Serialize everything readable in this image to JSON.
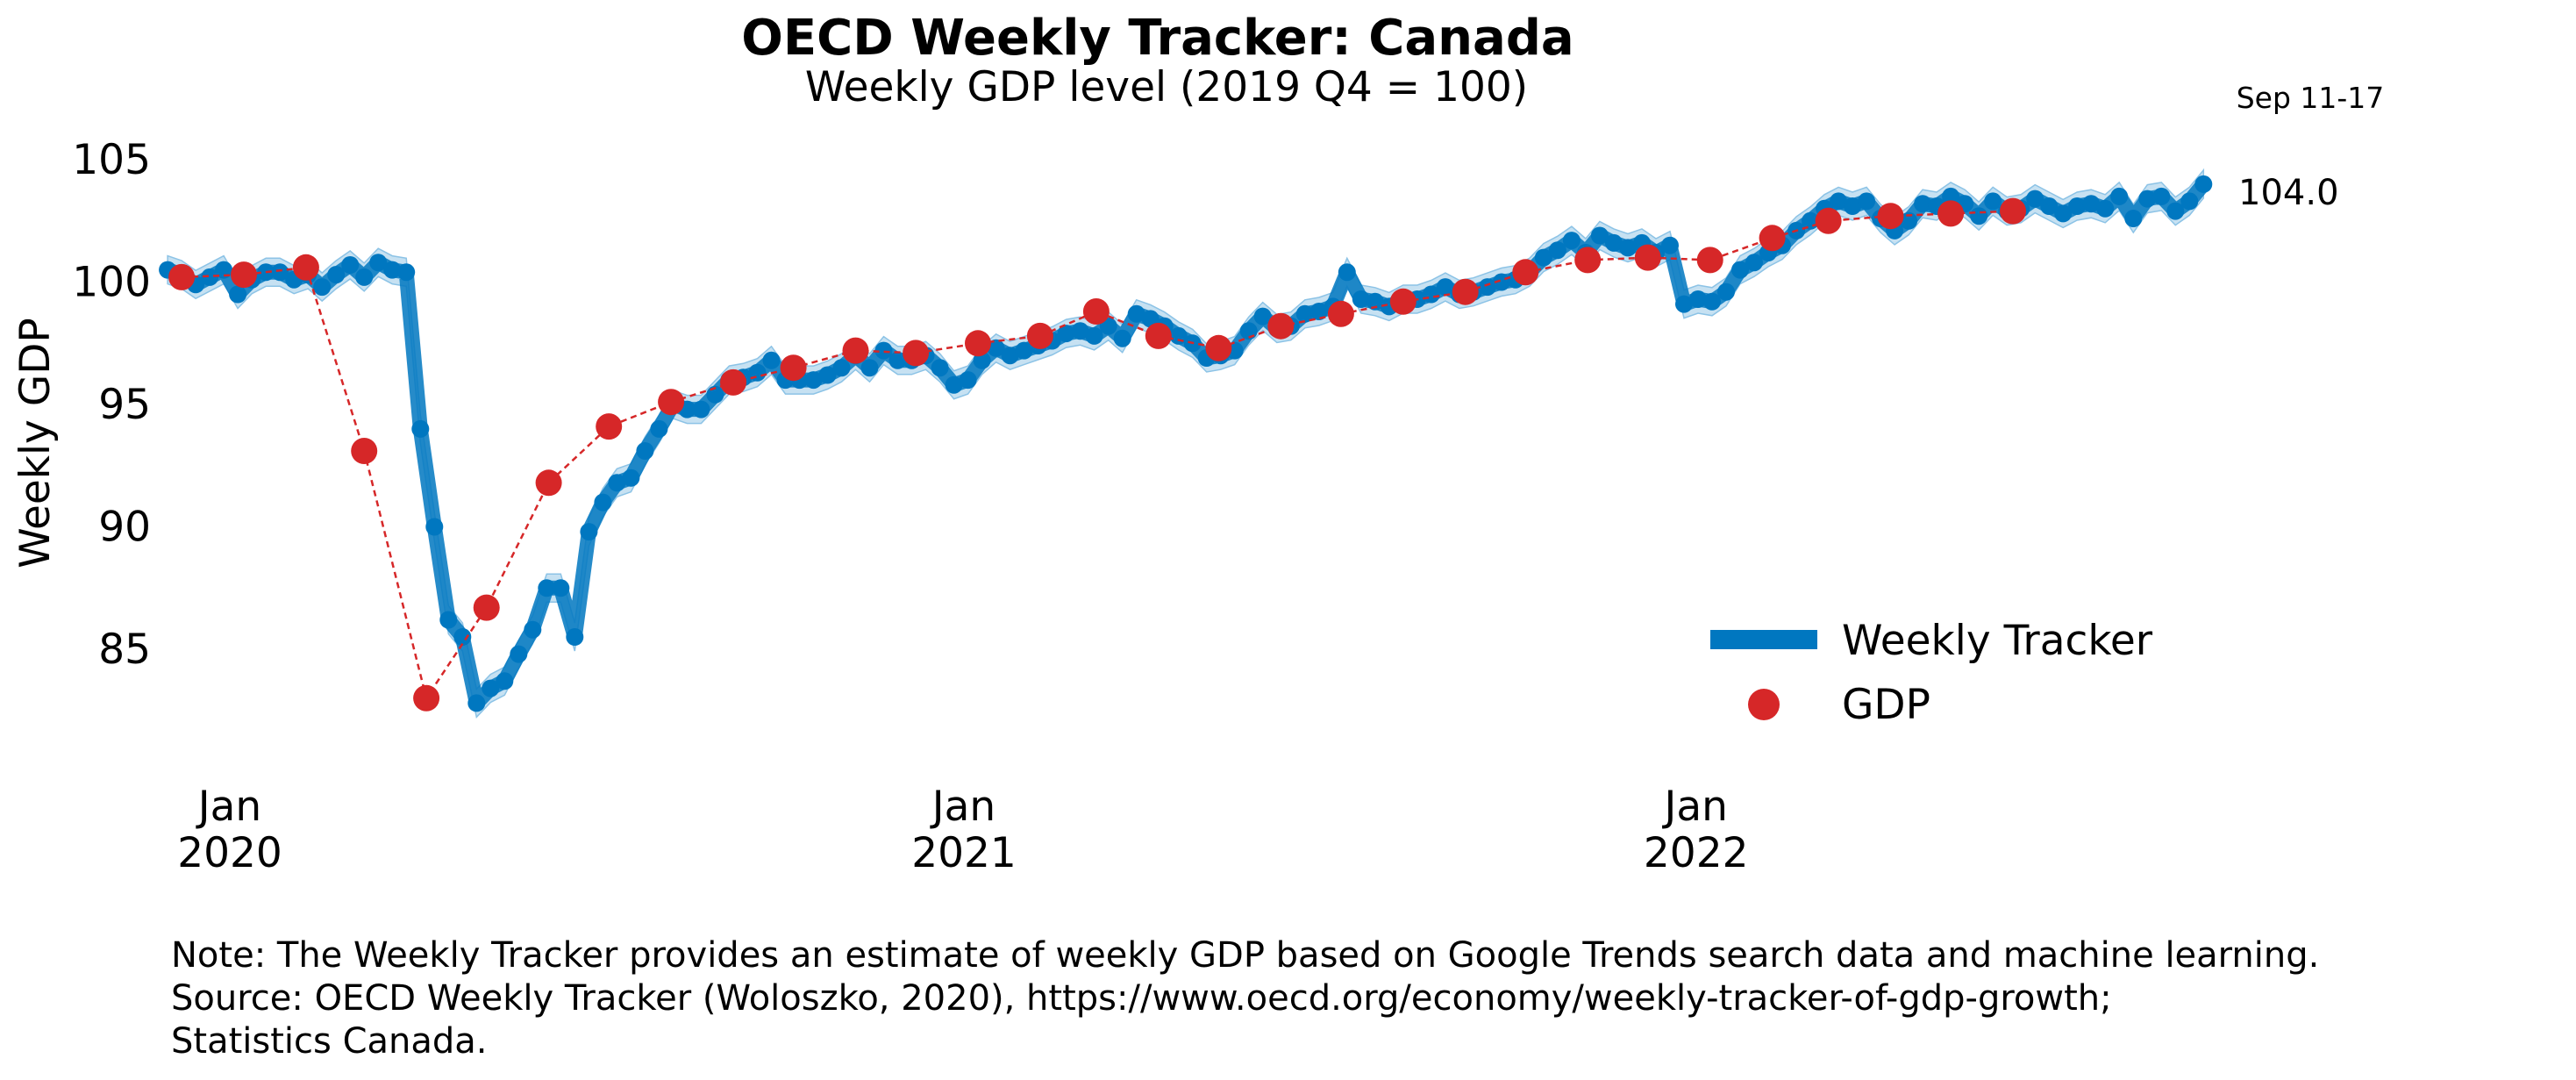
{
  "chart_data": {
    "type": "line",
    "title": "OECD Weekly Tracker: Canada",
    "subtitle": "Weekly GDP level (2019 Q4 = 100)",
    "ylabel": "Weekly GDP",
    "xlabel": "",
    "ylim": [
      80,
      106.5
    ],
    "yticks": [
      85,
      90,
      95,
      100,
      105
    ],
    "xticks": [
      {
        "date": "2020-01-01",
        "line1": "Jan",
        "line2": "2020"
      },
      {
        "date": "2021-01-01",
        "line1": "Jan",
        "line2": "2021"
      },
      {
        "date": "2022-01-01",
        "line1": "Jan",
        "line2": "2022"
      }
    ],
    "grid": false,
    "legend_position": "lower-right",
    "latest_period": "Sep 11-17",
    "latest_value": "104.0",
    "colors": {
      "tracker": "#0077c0",
      "band": "#b3d7ee",
      "gdp": "#d62728"
    },
    "series": [
      {
        "name": "Weekly Tracker",
        "type": "line",
        "points": [
          [
            "2019-12-01",
            100.5
          ],
          [
            "2019-12-08",
            100.3
          ],
          [
            "2019-12-15",
            99.9
          ],
          [
            "2019-12-22",
            100.2
          ],
          [
            "2019-12-29",
            100.5
          ],
          [
            "2020-01-05",
            99.5
          ],
          [
            "2020-01-12",
            100.1
          ],
          [
            "2020-01-19",
            100.4
          ],
          [
            "2020-01-26",
            100.4
          ],
          [
            "2020-02-02",
            100.1
          ],
          [
            "2020-02-09",
            100.3
          ],
          [
            "2020-02-16",
            99.8
          ],
          [
            "2020-02-23",
            100.3
          ],
          [
            "2020-03-01",
            100.7
          ],
          [
            "2020-03-08",
            100.2
          ],
          [
            "2020-03-15",
            100.8
          ],
          [
            "2020-03-22",
            100.5
          ],
          [
            "2020-03-29",
            100.4
          ],
          [
            "2020-04-05",
            94.0
          ],
          [
            "2020-04-12",
            90.0
          ],
          [
            "2020-04-19",
            86.2
          ],
          [
            "2020-04-26",
            85.5
          ],
          [
            "2020-05-03",
            82.8
          ],
          [
            "2020-05-10",
            83.4
          ],
          [
            "2020-05-17",
            83.7
          ],
          [
            "2020-05-24",
            84.8
          ],
          [
            "2020-05-31",
            85.8
          ],
          [
            "2020-06-07",
            87.5
          ],
          [
            "2020-06-14",
            87.5
          ],
          [
            "2020-06-21",
            85.5
          ],
          [
            "2020-06-28",
            89.8
          ],
          [
            "2020-07-05",
            91.0
          ],
          [
            "2020-07-12",
            91.8
          ],
          [
            "2020-07-19",
            92.0
          ],
          [
            "2020-07-26",
            93.1
          ],
          [
            "2020-08-02",
            94.0
          ],
          [
            "2020-08-09",
            95.0
          ],
          [
            "2020-08-16",
            94.8
          ],
          [
            "2020-08-23",
            94.8
          ],
          [
            "2020-08-30",
            95.4
          ],
          [
            "2020-09-06",
            96.0
          ],
          [
            "2020-09-13",
            96.1
          ],
          [
            "2020-09-20",
            96.3
          ],
          [
            "2020-09-27",
            96.8
          ],
          [
            "2020-10-04",
            96.0
          ],
          [
            "2020-10-11",
            96.0
          ],
          [
            "2020-10-18",
            96.0
          ],
          [
            "2020-10-25",
            96.2
          ],
          [
            "2020-11-01",
            96.5
          ],
          [
            "2020-11-08",
            97.0
          ],
          [
            "2020-11-15",
            96.5
          ],
          [
            "2020-11-22",
            97.2
          ],
          [
            "2020-11-29",
            96.8
          ],
          [
            "2020-12-06",
            96.8
          ],
          [
            "2020-12-13",
            97.0
          ],
          [
            "2020-12-20",
            96.5
          ],
          [
            "2020-12-27",
            95.8
          ],
          [
            "2021-01-03",
            96.0
          ],
          [
            "2021-01-10",
            96.8
          ],
          [
            "2021-01-17",
            97.3
          ],
          [
            "2021-01-24",
            97.0
          ],
          [
            "2021-01-31",
            97.2
          ],
          [
            "2021-02-07",
            97.4
          ],
          [
            "2021-02-14",
            97.6
          ],
          [
            "2021-02-21",
            97.9
          ],
          [
            "2021-02-28",
            98.0
          ],
          [
            "2021-03-07",
            97.8
          ],
          [
            "2021-03-14",
            98.2
          ],
          [
            "2021-03-21",
            97.7
          ],
          [
            "2021-03-28",
            98.7
          ],
          [
            "2021-04-04",
            98.5
          ],
          [
            "2021-04-11",
            98.2
          ],
          [
            "2021-04-18",
            97.8
          ],
          [
            "2021-04-25",
            97.5
          ],
          [
            "2021-05-02",
            96.9
          ],
          [
            "2021-05-09",
            97.0
          ],
          [
            "2021-05-16",
            97.2
          ],
          [
            "2021-05-23",
            98.0
          ],
          [
            "2021-05-30",
            98.6
          ],
          [
            "2021-06-06",
            98.1
          ],
          [
            "2021-06-13",
            98.2
          ],
          [
            "2021-06-20",
            98.7
          ],
          [
            "2021-06-27",
            98.8
          ],
          [
            "2021-07-04",
            99.0
          ],
          [
            "2021-07-11",
            100.4
          ],
          [
            "2021-07-18",
            99.3
          ],
          [
            "2021-07-25",
            99.2
          ],
          [
            "2021-08-01",
            99.0
          ],
          [
            "2021-08-08",
            99.3
          ],
          [
            "2021-08-15",
            99.3
          ],
          [
            "2021-08-22",
            99.5
          ],
          [
            "2021-08-29",
            99.8
          ],
          [
            "2021-09-05",
            99.5
          ],
          [
            "2021-09-12",
            99.6
          ],
          [
            "2021-09-19",
            99.8
          ],
          [
            "2021-09-26",
            100.0
          ],
          [
            "2021-10-03",
            100.1
          ],
          [
            "2021-10-10",
            100.4
          ],
          [
            "2021-10-17",
            101.0
          ],
          [
            "2021-10-24",
            101.3
          ],
          [
            "2021-10-31",
            101.7
          ],
          [
            "2021-11-07",
            101.2
          ],
          [
            "2021-11-14",
            101.9
          ],
          [
            "2021-11-21",
            101.6
          ],
          [
            "2021-11-28",
            101.4
          ],
          [
            "2021-12-05",
            101.6
          ],
          [
            "2021-12-12",
            101.2
          ],
          [
            "2021-12-19",
            101.5
          ],
          [
            "2021-12-26",
            99.1
          ],
          [
            "2022-01-02",
            99.3
          ],
          [
            "2022-01-09",
            99.2
          ],
          [
            "2022-01-16",
            99.6
          ],
          [
            "2022-01-23",
            100.5
          ],
          [
            "2022-01-30",
            100.8
          ],
          [
            "2022-02-06",
            101.2
          ],
          [
            "2022-02-13",
            101.5
          ],
          [
            "2022-02-20",
            102.1
          ],
          [
            "2022-02-27",
            102.5
          ],
          [
            "2022-03-06",
            103.0
          ],
          [
            "2022-03-13",
            103.3
          ],
          [
            "2022-03-20",
            103.1
          ],
          [
            "2022-03-27",
            103.3
          ],
          [
            "2022-04-03",
            102.6
          ],
          [
            "2022-04-10",
            102.1
          ],
          [
            "2022-04-17",
            102.5
          ],
          [
            "2022-04-24",
            103.2
          ],
          [
            "2022-05-01",
            103.1
          ],
          [
            "2022-05-08",
            103.5
          ],
          [
            "2022-05-15",
            103.2
          ],
          [
            "2022-05-22",
            102.7
          ],
          [
            "2022-05-29",
            103.3
          ],
          [
            "2022-06-05",
            102.9
          ],
          [
            "2022-06-12",
            103.0
          ],
          [
            "2022-06-19",
            103.4
          ],
          [
            "2022-06-26",
            103.1
          ],
          [
            "2022-07-03",
            102.8
          ],
          [
            "2022-07-10",
            103.1
          ],
          [
            "2022-07-17",
            103.2
          ],
          [
            "2022-07-24",
            103.0
          ],
          [
            "2022-07-31",
            103.5
          ],
          [
            "2022-08-07",
            102.6
          ],
          [
            "2022-08-14",
            103.4
          ],
          [
            "2022-08-21",
            103.5
          ],
          [
            "2022-08-28",
            102.9
          ],
          [
            "2022-09-04",
            103.3
          ],
          [
            "2022-09-11",
            104.0
          ]
        ]
      },
      {
        "name": "GDP",
        "type": "scatter",
        "points": [
          [
            "2019-12-08",
            100.2
          ],
          [
            "2020-01-08",
            100.3
          ],
          [
            "2020-02-08",
            100.6
          ],
          [
            "2020-03-08",
            93.1
          ],
          [
            "2020-04-08",
            83.0
          ],
          [
            "2020-05-08",
            86.7
          ],
          [
            "2020-06-08",
            91.8
          ],
          [
            "2020-07-08",
            94.1
          ],
          [
            "2020-08-08",
            95.1
          ],
          [
            "2020-09-08",
            95.9
          ],
          [
            "2020-10-08",
            96.5
          ],
          [
            "2020-11-08",
            97.2
          ],
          [
            "2020-12-08",
            97.1
          ],
          [
            "2021-01-08",
            97.5
          ],
          [
            "2021-02-08",
            97.8
          ],
          [
            "2021-03-08",
            98.8
          ],
          [
            "2021-04-08",
            97.8
          ],
          [
            "2021-05-08",
            97.3
          ],
          [
            "2021-06-08",
            98.2
          ],
          [
            "2021-07-08",
            98.7
          ],
          [
            "2021-08-08",
            99.2
          ],
          [
            "2021-09-08",
            99.6
          ],
          [
            "2021-10-08",
            100.4
          ],
          [
            "2021-11-08",
            100.9
          ],
          [
            "2021-12-08",
            101.0
          ],
          [
            "2022-01-08",
            100.9
          ],
          [
            "2022-02-08",
            101.8
          ],
          [
            "2022-03-08",
            102.5
          ],
          [
            "2022-04-08",
            102.7
          ],
          [
            "2022-05-08",
            102.8
          ],
          [
            "2022-06-08",
            102.9
          ]
        ]
      }
    ]
  },
  "note": {
    "line1": "Note: The Weekly Tracker provides an estimate of weekly GDP based on Google Trends search data and machine learning.",
    "line2": "Source: OECD Weekly Tracker (Woloszko, 2020), https://www.oecd.org/economy/weekly-tracker-of-gdp-growth;",
    "line3": "Statistics Canada."
  }
}
